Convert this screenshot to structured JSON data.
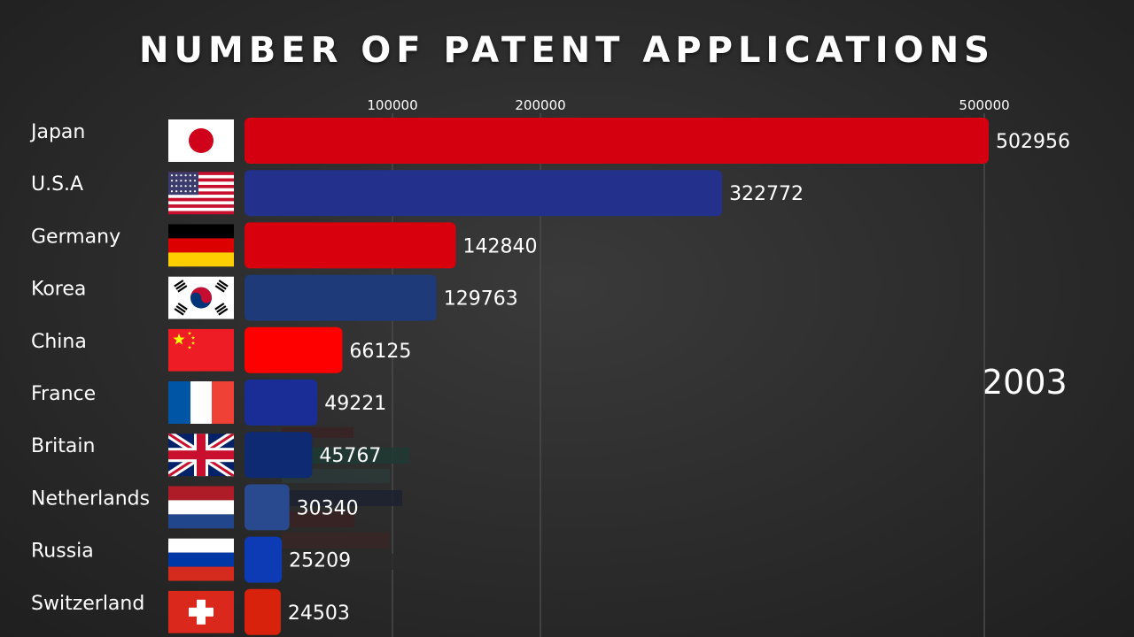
{
  "chart_data": {
    "type": "bar",
    "orientation": "horizontal",
    "title": "NUMBER OF PATENT APPLICATIONS",
    "year": "2003",
    "x_ticks": [
      100000,
      200000,
      500000
    ],
    "grid": true,
    "categories": [
      "Japan",
      "U.S.A",
      "Germany",
      "Korea",
      "China",
      "France",
      "Britain",
      "Netherlands",
      "Russia",
      "Switzerland"
    ],
    "values": [
      502956,
      322772,
      142840,
      129763,
      66125,
      49221,
      45767,
      30340,
      25209,
      24503
    ],
    "bar_colors": [
      "#d4000f",
      "#24318c",
      "#d8000c",
      "#1e3a78",
      "#fe0000",
      "#1a2d96",
      "#0d2a72",
      "#2a4a8f",
      "#0d3bb5",
      "#d8220c"
    ],
    "flags": [
      "japan-flag-icon",
      "usa-flag-icon",
      "germany-flag-icon",
      "korea-flag-icon",
      "china-flag-icon",
      "france-flag-icon",
      "britain-flag-icon",
      "netherlands-flag-icon",
      "russia-flag-icon",
      "switzerland-flag-icon"
    ]
  }
}
